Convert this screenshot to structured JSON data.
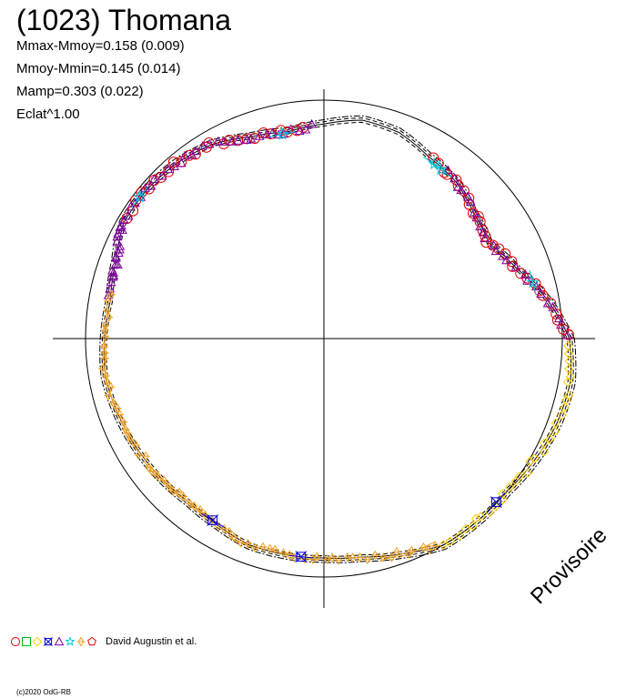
{
  "header": {
    "title": "(1023) Thomana",
    "stats": [
      "Mmax-Mmoy=0.158 (0.009)",
      "Mmoy-Mmin=0.145 (0.014)",
      "Mamp=0.303 (0.022)",
      "Eclat^1.00"
    ]
  },
  "legend": {
    "symbols": [
      "circle",
      "square",
      "diamond",
      "square-cross",
      "triangle",
      "star",
      "diamond-cross",
      "pentagon"
    ],
    "symbol_colors": [
      "#e00000",
      "#00c000",
      "#ffd000",
      "#0000e0",
      "#8000a0",
      "#00c8e0",
      "#f0a020",
      "#e00000"
    ],
    "label": "David Augustin et al."
  },
  "watermark": "Provisoire",
  "copyright": "(c)2020 OdG-RB",
  "chart_data": {
    "type": "polar-lightcurve",
    "reference_circle": true,
    "axes": "crosshair",
    "grid": false,
    "legend_position": "bottom-left",
    "curve_relative_radius": {
      "angle_deg": [
        0,
        10,
        20,
        30,
        40,
        50,
        60,
        70,
        80,
        90,
        100,
        110,
        120,
        130,
        140,
        150,
        160,
        170,
        180,
        190,
        200,
        210,
        220,
        230,
        240,
        250,
        260,
        270,
        280,
        290,
        300,
        310,
        320,
        330,
        340,
        350
      ],
      "radius": [
        1.03,
        0.95,
        0.86,
        0.8,
        0.82,
        0.86,
        0.88,
        0.92,
        0.93,
        0.9,
        0.88,
        0.9,
        0.94,
        0.96,
        0.97,
        0.97,
        0.93,
        0.91,
        0.92,
        0.93,
        0.92,
        0.91,
        0.9,
        0.89,
        0.9,
        0.92,
        0.92,
        0.92,
        0.93,
        0.96,
        1.0,
        1.0,
        1.0,
        1.02,
        1.04,
        1.05
      ]
    },
    "series": [
      {
        "symbol": "circle",
        "color": "#e00000",
        "ranges": [
          [
            95,
            150,
            25
          ],
          [
            0,
            60,
            30
          ]
        ]
      },
      {
        "symbol": "triangle",
        "color": "#8000a0",
        "ranges": [
          [
            93,
            165,
            40
          ],
          [
            150,
            170,
            12
          ],
          [
            0,
            55,
            25
          ]
        ]
      },
      {
        "symbol": "diamond-cross",
        "color": "#f0a020",
        "ranges": [
          [
            168,
            300,
            70
          ]
        ]
      },
      {
        "symbol": "diamond",
        "color": "#ffd000",
        "ranges": [
          [
            300,
            360,
            32
          ]
        ]
      },
      {
        "symbol": "square-cross",
        "color": "#0000e0",
        "ranges": [
          [
            237,
            240,
            1
          ],
          [
            262,
            266,
            1
          ],
          [
            315,
            318,
            1
          ]
        ]
      },
      {
        "symbol": "star",
        "color": "#00c8e0",
        "ranges": [
          [
            100,
            103,
            1
          ],
          [
            141,
            144,
            1
          ],
          [
            55,
            60,
            2
          ],
          [
            14,
            16,
            1
          ]
        ]
      }
    ]
  }
}
